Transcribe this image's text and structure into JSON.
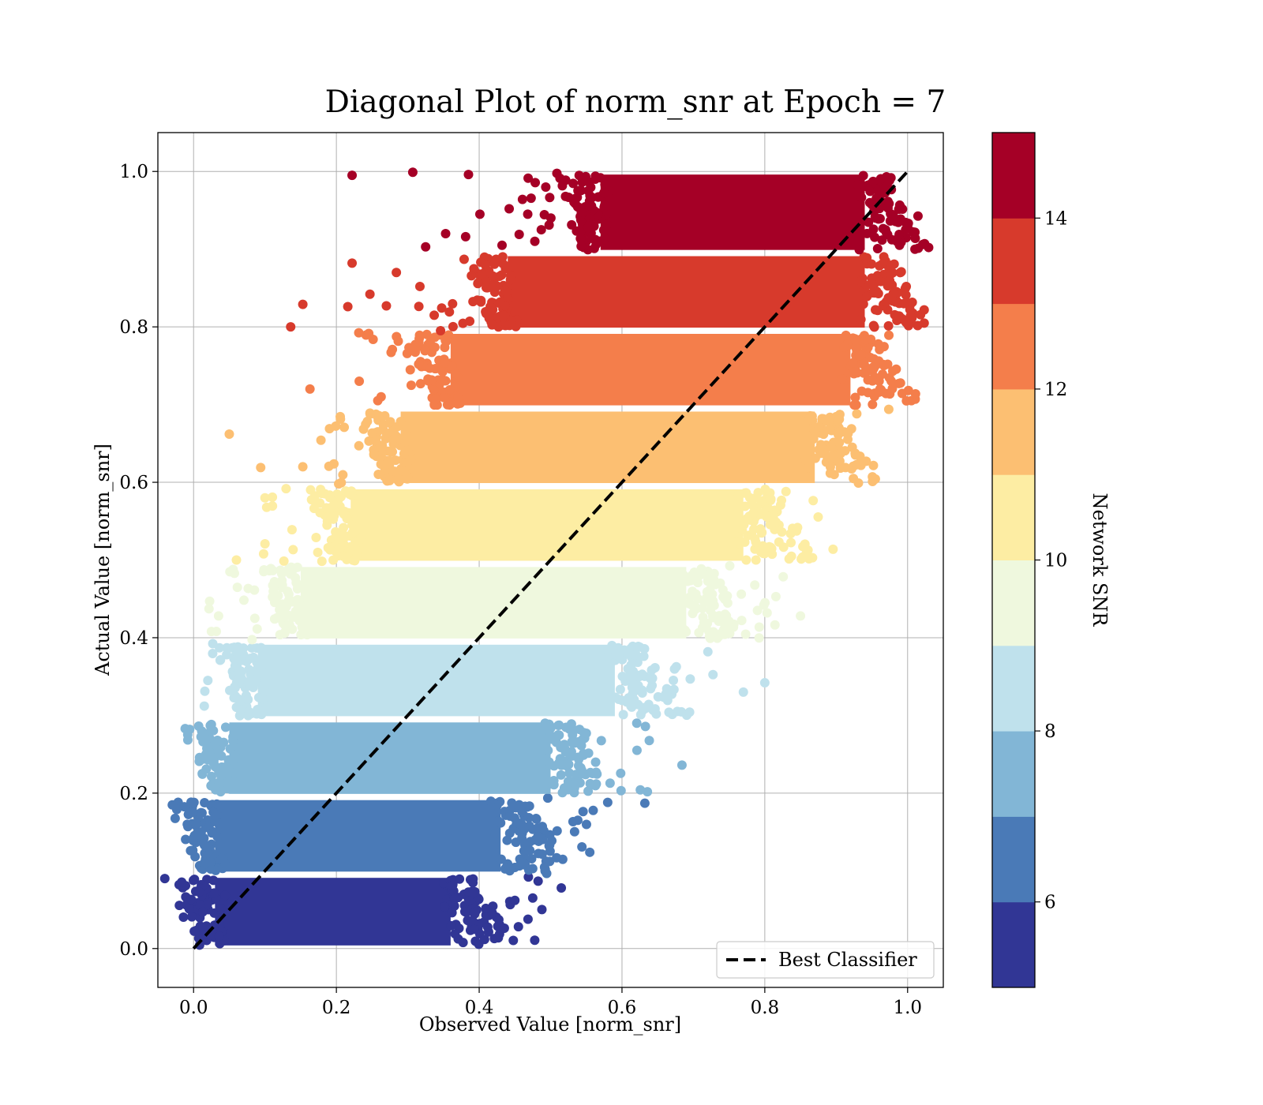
{
  "chart_data": {
    "type": "scatter",
    "title": "Diagonal Plot of norm_snr at Epoch = 7",
    "xlabel": "Observed Value [norm_snr]",
    "ylabel": "Actual Value [norm_snr]",
    "xlim": [
      -0.05,
      1.05
    ],
    "ylim": [
      -0.05,
      1.05
    ],
    "xticks": [
      "0.0",
      "0.2",
      "0.4",
      "0.6",
      "0.8",
      "1.0"
    ],
    "yticks": [
      "0.0",
      "0.2",
      "0.4",
      "0.6",
      "0.8",
      "1.0"
    ],
    "grid": true,
    "legend": {
      "position": "lower-right",
      "entries": [
        "Best Classifier"
      ]
    },
    "reference_line": {
      "name": "Best Classifier",
      "x": [
        0,
        1
      ],
      "y": [
        0,
        1
      ],
      "style": "dashed",
      "color": "#000000"
    },
    "colorbar": {
      "label": "Network SNR",
      "range": [
        5,
        15
      ],
      "ticks": [
        "6",
        "8",
        "10",
        "12",
        "14"
      ],
      "colormap": "RdYlBu_r (10 discrete levels)",
      "levels": [
        {
          "from": 5,
          "to": 6,
          "color": "#313695"
        },
        {
          "from": 6,
          "to": 7,
          "color": "#4a7ab7"
        },
        {
          "from": 7,
          "to": 8,
          "color": "#82b6d6"
        },
        {
          "from": 8,
          "to": 9,
          "color": "#bfe1ec"
        },
        {
          "from": 9,
          "to": 10,
          "color": "#eff8de"
        },
        {
          "from": 10,
          "to": 11,
          "color": "#fdeda3"
        },
        {
          "from": 11,
          "to": 12,
          "color": "#fcbf72"
        },
        {
          "from": 12,
          "to": 13,
          "color": "#f47e4b"
        },
        {
          "from": 13,
          "to": 14,
          "color": "#d73a2c"
        },
        {
          "from": 14,
          "to": 15,
          "color": "#a50026"
        }
      ]
    },
    "bands": [
      {
        "snr_level": 1,
        "y_range": [
          0.0,
          0.095
        ],
        "x_dense_range": [
          0.01,
          0.39
        ],
        "color": "#313695"
      },
      {
        "snr_level": 2,
        "y_range": [
          0.095,
          0.195
        ],
        "x_dense_range": [
          0.01,
          0.46
        ],
        "color": "#4a7ab7"
      },
      {
        "snr_level": 3,
        "y_range": [
          0.195,
          0.295
        ],
        "x_dense_range": [
          0.03,
          0.53
        ],
        "color": "#82b6d6"
      },
      {
        "snr_level": 4,
        "y_range": [
          0.295,
          0.395
        ],
        "x_dense_range": [
          0.07,
          0.62
        ],
        "color": "#bfe1ec"
      },
      {
        "snr_level": 5,
        "y_range": [
          0.395,
          0.495
        ],
        "x_dense_range": [
          0.13,
          0.72
        ],
        "color": "#eff8de"
      },
      {
        "snr_level": 6,
        "y_range": [
          0.495,
          0.595
        ],
        "x_dense_range": [
          0.2,
          0.8
        ],
        "color": "#fdeda3"
      },
      {
        "snr_level": 7,
        "y_range": [
          0.595,
          0.695
        ],
        "x_dense_range": [
          0.27,
          0.9
        ],
        "color": "#fcbf72"
      },
      {
        "snr_level": 8,
        "y_range": [
          0.695,
          0.795
        ],
        "x_dense_range": [
          0.34,
          0.95
        ],
        "color": "#f47e4b"
      },
      {
        "snr_level": 9,
        "y_range": [
          0.795,
          0.895
        ],
        "x_dense_range": [
          0.42,
          0.97
        ],
        "color": "#d73a2c"
      },
      {
        "snr_level": 10,
        "y_range": [
          0.895,
          1.0
        ],
        "x_dense_range": [
          0.55,
          0.97
        ],
        "color": "#a50026"
      }
    ],
    "outliers": [
      {
        "x": 0.222,
        "y": 0.995,
        "band": 10
      },
      {
        "x": 0.307,
        "y": 0.999,
        "band": 10
      },
      {
        "x": 0.385,
        "y": 0.996,
        "band": 10
      },
      {
        "x": 0.325,
        "y": 0.903,
        "band": 10
      },
      {
        "x": 0.353,
        "y": 0.92,
        "band": 10
      },
      {
        "x": 0.381,
        "y": 0.916,
        "band": 10
      },
      {
        "x": 0.401,
        "y": 0.945,
        "band": 10
      },
      {
        "x": 0.442,
        "y": 0.952,
        "band": 10
      },
      {
        "x": 0.432,
        "y": 0.905,
        "band": 10
      },
      {
        "x": 0.468,
        "y": 0.945,
        "band": 10
      },
      {
        "x": 0.487,
        "y": 0.925,
        "band": 10
      },
      {
        "x": 0.136,
        "y": 0.8,
        "band": 9
      },
      {
        "x": 0.153,
        "y": 0.829,
        "band": 9
      },
      {
        "x": 0.216,
        "y": 0.826,
        "band": 9
      },
      {
        "x": 0.222,
        "y": 0.882,
        "band": 9
      },
      {
        "x": 0.247,
        "y": 0.842,
        "band": 9
      },
      {
        "x": 0.27,
        "y": 0.827,
        "band": 9
      },
      {
        "x": 0.284,
        "y": 0.87,
        "band": 9
      },
      {
        "x": 0.317,
        "y": 0.852,
        "band": 9
      },
      {
        "x": 0.337,
        "y": 0.815,
        "band": 9
      },
      {
        "x": 0.05,
        "y": 0.662,
        "band": 7
      },
      {
        "x": 0.094,
        "y": 0.619,
        "band": 7
      },
      {
        "x": 0.153,
        "y": 0.62,
        "band": 7
      },
      {
        "x": 0.163,
        "y": 0.72,
        "band": 8
      },
      {
        "x": 0.232,
        "y": 0.73,
        "band": 8
      },
      {
        "x": 0.258,
        "y": 0.705,
        "band": 8
      },
      {
        "x": 0.06,
        "y": 0.5,
        "band": 6
      },
      {
        "x": 0.1,
        "y": 0.58,
        "band": 6
      },
      {
        "x": 0.025,
        "y": 0.408,
        "band": 5
      },
      {
        "x": 0.035,
        "y": 0.428,
        "band": 5
      },
      {
        "x": 0.85,
        "y": 0.428,
        "band": 5
      },
      {
        "x": 0.02,
        "y": 0.345,
        "band": 4
      },
      {
        "x": 0.77,
        "y": 0.33,
        "band": 4
      },
      {
        "x": 0.8,
        "y": 0.342,
        "band": 4
      },
      {
        "x": 0.684,
        "y": 0.236,
        "band": 3
      },
      {
        "x": 0.632,
        "y": 0.187,
        "band": 2
      },
      {
        "x": 0.58,
        "y": 0.188,
        "band": 2
      },
      {
        "x": 0.515,
        "y": 0.078,
        "band": 1
      },
      {
        "x": 0.475,
        "y": 0.065,
        "band": 1
      },
      {
        "x": 0.45,
        "y": 0.062,
        "band": 1
      }
    ],
    "approx_point_count": 100000
  }
}
